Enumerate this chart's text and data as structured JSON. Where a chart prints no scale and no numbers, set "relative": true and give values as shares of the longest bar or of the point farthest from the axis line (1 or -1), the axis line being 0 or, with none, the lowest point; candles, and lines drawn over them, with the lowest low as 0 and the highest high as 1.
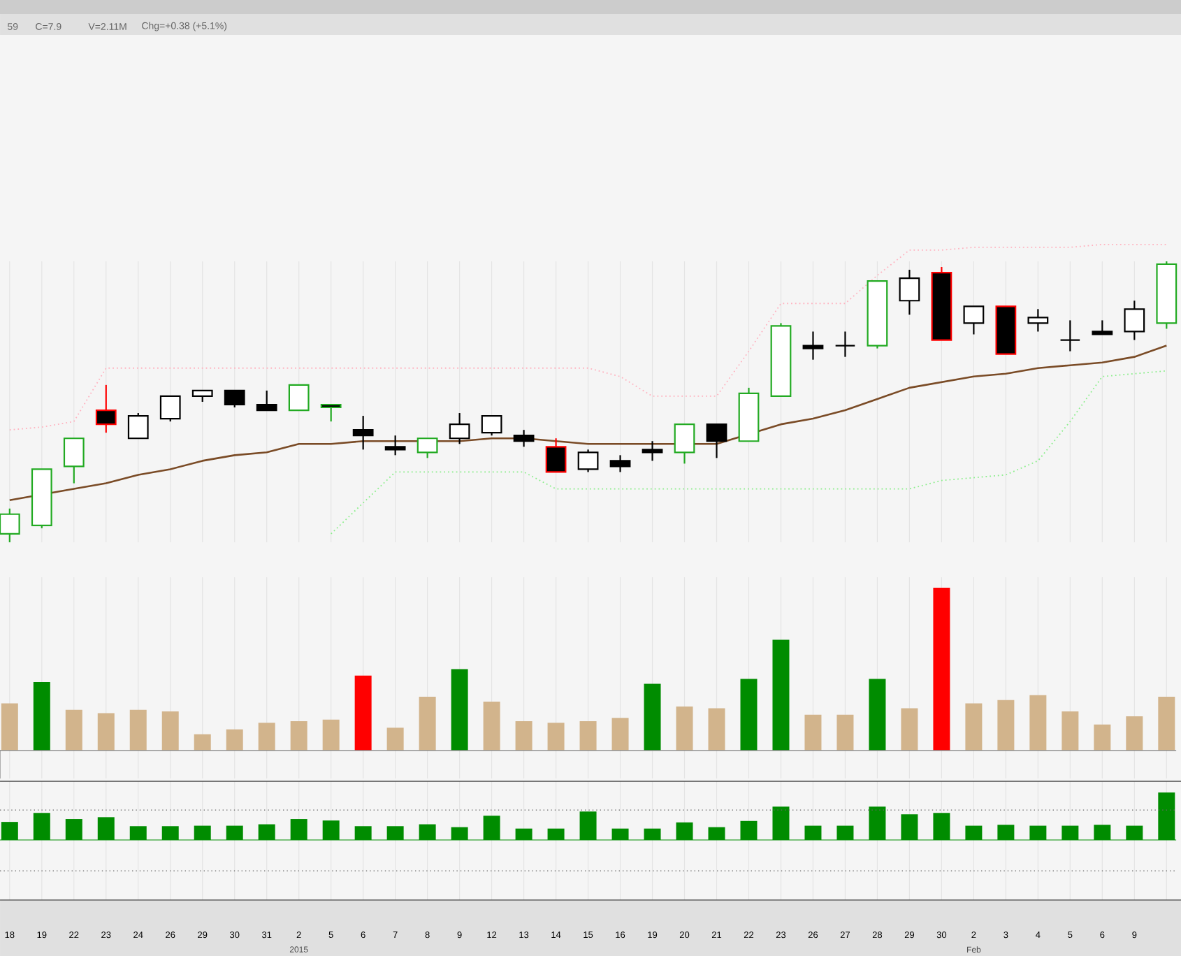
{
  "chart_data": [
    {
      "type": "candlestick",
      "relative": true,
      "grid": "x",
      "tick_labels": false,
      "categories": [
        "18",
        "19",
        "22",
        "23",
        "24",
        "26",
        "29",
        "30",
        "31",
        "2",
        "5",
        "6",
        "7",
        "8",
        "9",
        "12",
        "13",
        "14",
        "15",
        "16",
        "19",
        "20",
        "21",
        "22",
        "23",
        "26",
        "27",
        "28",
        "29",
        "30",
        "2",
        "3",
        "4",
        "5",
        "6",
        "9",
        null
      ],
      "ohlc": [
        [
          0.03,
          0.12,
          0,
          0.1
        ],
        [
          0.06,
          0.26,
          0.05,
          0.26
        ],
        [
          0.27,
          0.37,
          0.21,
          0.37
        ],
        [
          0.47,
          0.56,
          0.39,
          0.42
        ],
        [
          0.37,
          0.46,
          0.37,
          0.45
        ],
        [
          0.44,
          0.52,
          0.43,
          0.52
        ],
        [
          0.52,
          0.54,
          0.5,
          0.54
        ],
        [
          0.54,
          0.54,
          0.48,
          0.49
        ],
        [
          0.49,
          0.54,
          0.47,
          0.47
        ],
        [
          0.47,
          0.56,
          0.47,
          0.56
        ],
        [
          0.49,
          0.49,
          0.43,
          0.48
        ],
        [
          0.4,
          0.45,
          0.33,
          0.38
        ],
        [
          0.34,
          0.38,
          0.31,
          0.33
        ],
        [
          0.32,
          0.37,
          0.3,
          0.37
        ],
        [
          0.37,
          0.46,
          0.35,
          0.42
        ],
        [
          0.39,
          0.45,
          0.38,
          0.45
        ],
        [
          0.38,
          0.4,
          0.34,
          0.36
        ],
        [
          0.34,
          0.37,
          0.25,
          0.25
        ],
        [
          0.26,
          0.33,
          0.25,
          0.32
        ],
        [
          0.29,
          0.31,
          0.25,
          0.27
        ],
        [
          0.33,
          0.36,
          0.29,
          0.32
        ],
        [
          0.32,
          0.42,
          0.28,
          0.42
        ],
        [
          0.42,
          0.42,
          0.3,
          0.36
        ],
        [
          0.36,
          0.55,
          0.36,
          0.53
        ],
        [
          0.52,
          0.78,
          0.52,
          0.77
        ],
        [
          0.7,
          0.75,
          0.65,
          0.69
        ],
        [
          0.7,
          0.75,
          0.66,
          0.7
        ],
        [
          0.7,
          0.93,
          0.69,
          0.93
        ],
        [
          0.86,
          0.97,
          0.81,
          0.94
        ],
        [
          0.96,
          0.98,
          0.72,
          0.72
        ],
        [
          0.78,
          0.84,
          0.74,
          0.84
        ],
        [
          0.84,
          0.84,
          0.67,
          0.67
        ],
        [
          0.78,
          0.83,
          0.75,
          0.8
        ],
        [
          0.72,
          0.79,
          0.68,
          0.72
        ],
        [
          0.75,
          0.79,
          0.74,
          0.74
        ],
        [
          0.75,
          0.86,
          0.72,
          0.83
        ],
        [
          0.78,
          1,
          0.76,
          0.99
        ]
      ],
      "colors": [
        "#22aa22",
        "#22aa22",
        "#22aa22",
        "#ff0000",
        "#000000",
        "#000000",
        "#000000",
        "#000000",
        "#000000",
        "#22aa22",
        "#22aa22",
        "#000000",
        "#000000",
        "#22aa22",
        "#000000",
        "#000000",
        "#000000",
        "#ff0000",
        "#000000",
        "#000000",
        "#000000",
        "#22aa22",
        "#000000",
        "#22aa22",
        "#22aa22",
        "#000000",
        "#000000",
        "#22aa22",
        "#000000",
        "#ff0000",
        "#000000",
        "#ff0000",
        "#000000",
        "#000000",
        "#000000",
        "#000000",
        "#22aa22"
      ],
      "series": [
        {
          "type": "line",
          "color": "#7a4b26",
          "line_style": "solid",
          "values": [
            0.15,
            null,
            0.19,
            0.21,
            0.24,
            0.26,
            0.29,
            0.31,
            0.32,
            0.35,
            0.35,
            0.36,
            0.36,
            0.36,
            0.36,
            0.37,
            0.37,
            0.36,
            0.35,
            0.35,
            0.35,
            null,
            0.35,
            null,
            0.42,
            0.44,
            0.47,
            0.51,
            0.55,
            0.57,
            0.59,
            0.6,
            0.62,
            0.63,
            0.64,
            0.66,
            0.7
          ]
        },
        {
          "type": "line",
          "color": "#ffb3c0",
          "line_style": "dotted",
          "values": [
            0.4,
            0.41,
            0.43,
            0.62,
            0.62,
            0.62,
            0.62,
            0.62,
            0.62,
            0.62,
            0.62,
            0.62,
            0.62,
            0.62,
            0.62,
            0.62,
            0.62,
            0.62,
            0.62,
            0.59,
            0.52,
            0.52,
            0.52,
            0.68,
            0.85,
            0.85,
            0.85,
            0.95,
            1.04,
            1.04,
            1.05,
            1.05,
            1.05,
            1.05,
            1.06,
            1.06,
            1.06
          ]
        },
        {
          "type": "line",
          "color": "#8cee8c",
          "line_style": "dotted",
          "values": [
            null,
            null,
            null,
            null,
            null,
            null,
            null,
            null,
            null,
            null,
            0.03,
            0.14,
            0.25,
            0.25,
            0.25,
            0.25,
            0.25,
            0.19,
            0.19,
            0.19,
            0.19,
            0.19,
            0.19,
            0.19,
            0.19,
            0.19,
            0.19,
            0.19,
            0.19,
            0.22,
            0.23,
            0.24,
            0.29,
            0.43,
            0.59,
            0.6,
            0.61
          ]
        }
      ],
      "annotations": [
        "59",
        "C=7.9",
        "V=2.11M",
        "Chg=+0.38 (+5.1%)"
      ]
    },
    {
      "type": "bar",
      "relative": true,
      "grid": "x",
      "tick_labels": false,
      "categories": [
        "18",
        "19",
        "22",
        "23",
        "24",
        "26",
        "29",
        "30",
        "31",
        "2",
        "5",
        "6",
        "7",
        "8",
        "9",
        "12",
        "13",
        "14",
        "15",
        "16",
        "19",
        "20",
        "21",
        "22",
        "23",
        "26",
        "27",
        "28",
        "29",
        "30",
        "2",
        "3",
        "4",
        "5",
        "6",
        "9",
        null
      ],
      "values": [
        0.29,
        0.42,
        0.25,
        0.23,
        0.25,
        0.24,
        0.1,
        0.13,
        0.17,
        0.18,
        0.19,
        0.46,
        0.14,
        0.33,
        0.5,
        0.3,
        0.18,
        0.17,
        0.18,
        0.2,
        0.41,
        0.27,
        0.26,
        0.44,
        0.68,
        0.22,
        0.22,
        0.44,
        0.26,
        1,
        0.29,
        0.31,
        0.34,
        0.24,
        0.16,
        0.21,
        0.33
      ],
      "colors": [
        "#d2b48c",
        "#008c00",
        "#d2b48c",
        "#d2b48c",
        "#d2b48c",
        "#d2b48c",
        "#d2b48c",
        "#d2b48c",
        "#d2b48c",
        "#d2b48c",
        "#d2b48c",
        "#ff0000",
        "#d2b48c",
        "#d2b48c",
        "#008c00",
        "#d2b48c",
        "#d2b48c",
        "#d2b48c",
        "#d2b48c",
        "#d2b48c",
        "#008c00",
        "#d2b48c",
        "#d2b48c",
        "#008c00",
        "#008c00",
        "#d2b48c",
        "#d2b48c",
        "#008c00",
        "#d2b48c",
        "#ff0000",
        "#d2b48c",
        "#d2b48c",
        "#d2b48c",
        "#d2b48c",
        "#d2b48c",
        "#d2b48c",
        "#d2b48c"
      ]
    },
    {
      "type": "bar",
      "relative": true,
      "grid": "x",
      "tick_labels": "x",
      "color": "#008c00",
      "categories": [
        "18",
        "19",
        "22",
        "23",
        "24",
        "26",
        "29",
        "30",
        "31",
        "2",
        "5",
        "6",
        "7",
        "8",
        "9",
        "12",
        "13",
        "14",
        "15",
        "16",
        "19",
        "20",
        "21",
        "22",
        "23",
        "26",
        "27",
        "28",
        "29",
        "30",
        "2",
        "3",
        "4",
        "5",
        "6",
        "9",
        null
      ],
      "values": [
        0.38,
        0.57,
        0.44,
        0.48,
        0.29,
        0.29,
        0.3,
        0.3,
        0.33,
        0.44,
        0.41,
        0.29,
        0.29,
        0.33,
        0.27,
        0.51,
        0.24,
        0.24,
        0.6,
        0.24,
        0.24,
        0.37,
        0.27,
        0.4,
        0.7,
        0.3,
        0.3,
        0.7,
        0.54,
        0.57,
        0.3,
        0.32,
        0.3,
        0.3,
        0.32,
        0.3,
        1
      ],
      "ref_lines": [
        {
          "axis": "y",
          "value": 0.63,
          "color": "#666666",
          "line_style": "dotted"
        },
        {
          "axis": "y",
          "value": -0.65,
          "color": "#666666",
          "line_style": "dotted"
        }
      ],
      "annotations": [
        "2015",
        "Feb"
      ]
    }
  ]
}
